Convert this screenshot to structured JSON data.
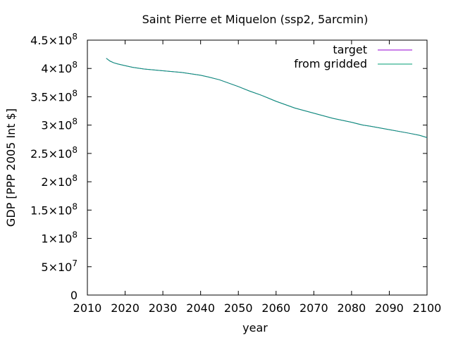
{
  "chart_data": {
    "type": "line",
    "title": "Saint Pierre et Miquelon (ssp2, 5arcmin)",
    "xlabel": "year",
    "ylabel": "GDP [PPP 2005 Int $]",
    "xlim": [
      2010,
      2100
    ],
    "ylim": [
      0,
      450000000
    ],
    "xticks": [
      2010,
      2020,
      2030,
      2040,
      2050,
      2060,
      2070,
      2080,
      2090,
      2100
    ],
    "xtick_labels": [
      "2010",
      "2020",
      "2030",
      "2040",
      "2050",
      "2060",
      "2070",
      "2080",
      "2090",
      "2100"
    ],
    "yticks": [
      0,
      50000000,
      100000000,
      150000000,
      200000000,
      250000000,
      300000000,
      350000000,
      400000000,
      450000000
    ],
    "ytick_labels": [
      {
        "mant": "0",
        "exp": ""
      },
      {
        "mant": "5×10",
        "exp": "7"
      },
      {
        "mant": "1×10",
        "exp": "8"
      },
      {
        "mant": "1.5×10",
        "exp": "8"
      },
      {
        "mant": "2×10",
        "exp": "8"
      },
      {
        "mant": "2.5×10",
        "exp": "8"
      },
      {
        "mant": "3×10",
        "exp": "8"
      },
      {
        "mant": "3.5×10",
        "exp": "8"
      },
      {
        "mant": "4×10",
        "exp": "8"
      },
      {
        "mant": "4.5×10",
        "exp": "8"
      }
    ],
    "grid": false,
    "legend": "top-right",
    "x": [
      2015,
      2016,
      2017,
      2018,
      2020,
      2022,
      2025,
      2030,
      2035,
      2040,
      2042,
      2045,
      2050,
      2053,
      2056,
      2060,
      2065,
      2070,
      2075,
      2080,
      2083,
      2085,
      2090,
      2095,
      2098,
      2100
    ],
    "series": [
      {
        "name": "target",
        "color": "#9400d3",
        "values": [
          418000000,
          413000000,
          410000000,
          408000000,
          405000000,
          402000000,
          399000000,
          396000000,
          393000000,
          388000000,
          385000000,
          380000000,
          368000000,
          360000000,
          353000000,
          342000000,
          330000000,
          321000000,
          312000000,
          305000000,
          300000000,
          298000000,
          292000000,
          286000000,
          282000000,
          278000000
        ]
      },
      {
        "name": "from gridded",
        "color": "#009e73",
        "values": [
          418000000,
          413000000,
          410000000,
          408000000,
          405000000,
          402000000,
          399000000,
          396000000,
          393000000,
          388000000,
          385000000,
          380000000,
          368000000,
          360000000,
          353000000,
          342000000,
          330000000,
          321000000,
          312000000,
          305000000,
          300000000,
          298000000,
          292000000,
          286000000,
          282000000,
          278000000
        ]
      }
    ]
  }
}
